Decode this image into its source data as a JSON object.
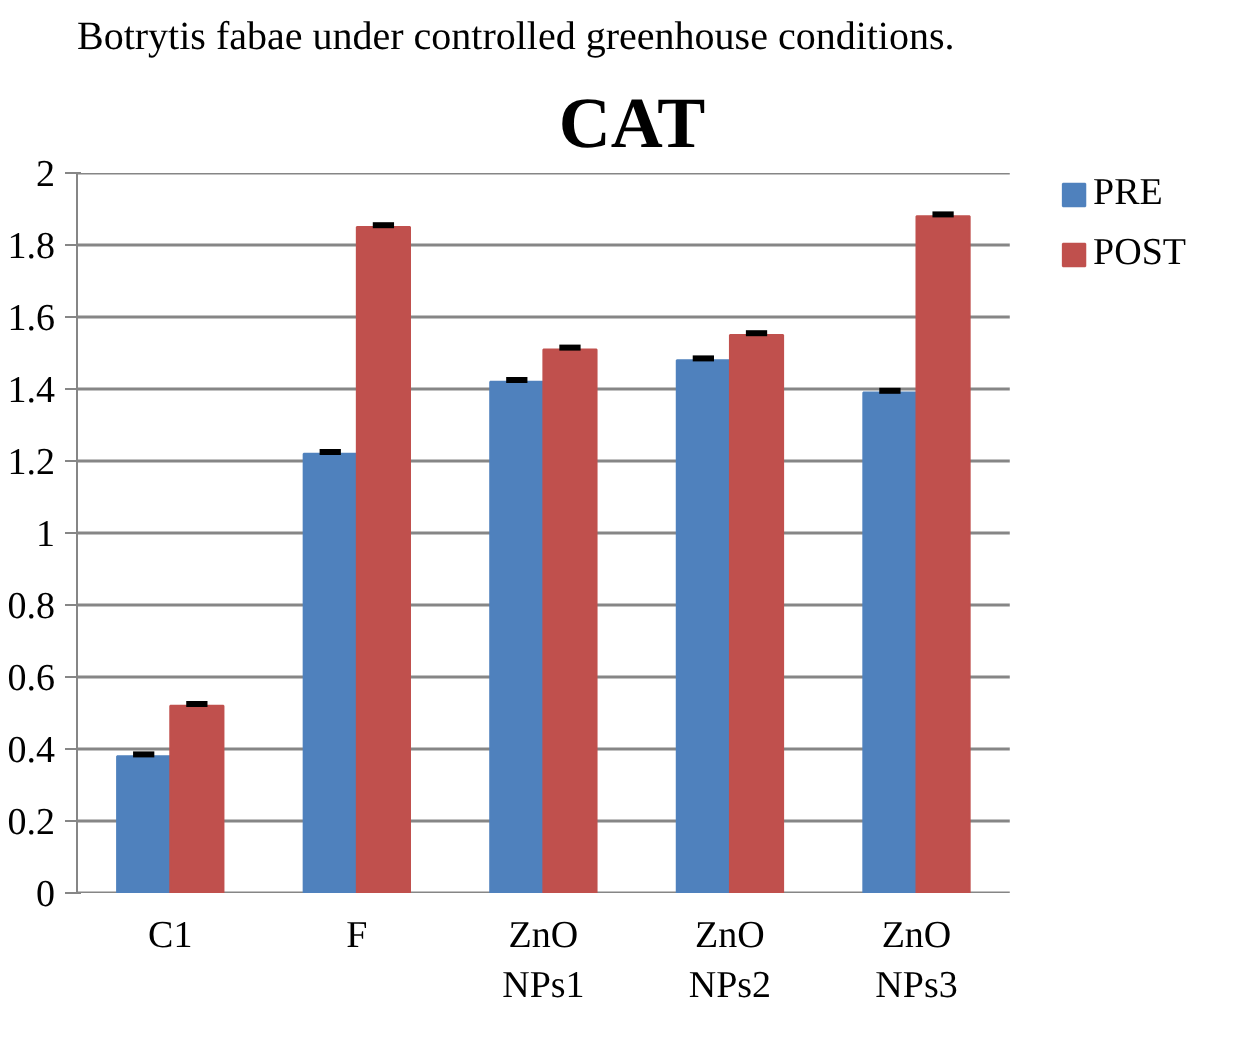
{
  "chart_data": {
    "type": "bar",
    "title": "CAT",
    "annotations": [
      "Botrytis fabae under controlled greenhouse conditions."
    ],
    "categories": [
      "C1",
      "F",
      "ZnO\nNPs1",
      "ZnO\nNPs2",
      "ZnO\nNPs3"
    ],
    "series": [
      {
        "name": "PRE",
        "color": "#4f81bd",
        "values": [
          0.38,
          1.22,
          1.42,
          1.48,
          1.39
        ],
        "errors": [
          0.005,
          0.005,
          0.005,
          0.005,
          0.005
        ]
      },
      {
        "name": "POST",
        "color": "#c0504d",
        "values": [
          0.52,
          1.85,
          1.51,
          1.55,
          1.88
        ],
        "errors": [
          0.005,
          0.005,
          0.005,
          0.005,
          0.005
        ]
      }
    ],
    "ylim": [
      0,
      2
    ],
    "yticks": [
      0,
      {
        "value": 0.2,
        "label": "0.2"
      },
      {
        "value": 0.4,
        "label": "0.4"
      },
      {
        "value": 0.6,
        "label": "0.6"
      },
      {
        "value": 0.8,
        "label": "0.8"
      },
      1,
      {
        "value": 1.2,
        "label": "1.2"
      },
      {
        "value": 1.4,
        "label": "1.4"
      },
      {
        "value": 1.6,
        "label": "1.6"
      },
      {
        "value": 1.8,
        "label": "1.8"
      },
      2
    ],
    "grid": "y",
    "legend": "top right"
  }
}
